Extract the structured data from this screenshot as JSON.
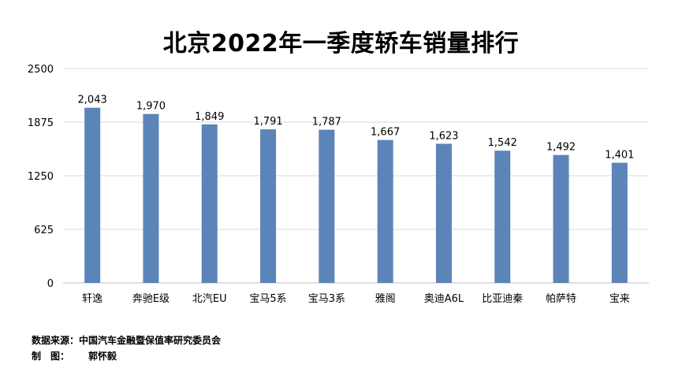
{
  "chart_data": {
    "type": "bar",
    "title": "北京2022年一季度轿车销量排行",
    "categories": [
      "轩逸",
      "奔驰E级",
      "北汽EU",
      "宝马5系",
      "宝马3系",
      "雅阁",
      "奥迪A6L",
      "比亚迪秦",
      "帕萨特",
      "宝来"
    ],
    "values": [
      2043,
      1970,
      1849,
      1791,
      1787,
      1667,
      1623,
      1542,
      1492,
      1401
    ],
    "value_labels": [
      "2,043",
      "1,970",
      "1,849",
      "1,791",
      "1,787",
      "1,667",
      "1,623",
      "1,542",
      "1,492",
      "1,401"
    ],
    "yticks": [
      "0",
      "625",
      "1250",
      "1875",
      "2500"
    ],
    "ylim": [
      0,
      2500
    ],
    "xlabel": "",
    "ylabel": "",
    "grid": true,
    "legend": "none",
    "bar_color": "#5b84b8"
  },
  "footer": {
    "source_label": "数据来源：",
    "source_text": "中国汽车金融暨保值率研究委员会",
    "author_label": "制　图：",
    "author_text": "郭怀毅"
  },
  "colors": {
    "bar": "#5b84b8",
    "grid": "#d9d9d9",
    "axis": "#bfbfbf",
    "text": "#000000"
  }
}
